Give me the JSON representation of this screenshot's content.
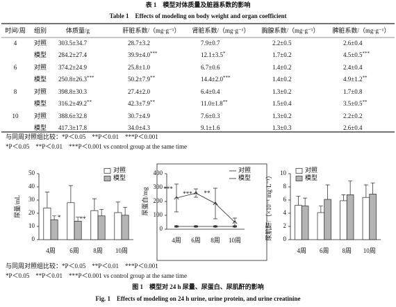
{
  "table_caption": {
    "zh": "表 1　模型对体质量及脏器系数的影响",
    "en": "Table 1　Effects of modeling on body weight and organ coefficient"
  },
  "table": {
    "headers": [
      "时间/周",
      "组别",
      "体质量/g",
      "肝脏系数/（mg·g⁻¹）",
      "肾脏系数/（mg·g⁻¹）",
      "胸腺系数/（mg·g⁻¹）",
      "脾脏系数/（mg·g⁻¹）"
    ],
    "groups": [
      {
        "week": "4",
        "rows": [
          {
            "group": "对照",
            "cells": [
              "303.5±34.7",
              "28.7±3.2",
              "7.9±0.7",
              "2.2±0.5",
              "2.6±0.4"
            ]
          },
          {
            "group": "模型",
            "cells": [
              "284.2±27.4",
              {
                "value": "39.9±4.0",
                "mark": "***"
              },
              {
                "value": "12.1±3.5",
                "mark": "*"
              },
              "1.7±0.2",
              {
                "value": "4.5±0.5",
                "mark": "***"
              }
            ]
          }
        ]
      },
      {
        "week": "6",
        "rows": [
          {
            "group": "对照",
            "cells": [
              "374.2±24.9",
              "25.8±1.0",
              "6.7±0.6",
              "1.4±0.2",
              "2.4±0.4"
            ]
          },
          {
            "group": "模型",
            "cells": [
              {
                "value": "250.8±26.3",
                "mark": "***"
              },
              {
                "value": "50.2±7.9",
                "mark": "**"
              },
              {
                "value": "14.4±2.0",
                "mark": "***"
              },
              "1.4±0.2",
              {
                "value": "4.9±1.2",
                "mark": "**"
              }
            ]
          }
        ]
      },
      {
        "week": "8",
        "rows": [
          {
            "group": "对照",
            "cells": [
              "398.8±30.3",
              "27.4±2.0",
              "6.4±0.4",
              "1.3±0.2",
              "1.7±0.8"
            ]
          },
          {
            "group": "模型",
            "cells": [
              {
                "value": "316.2±49.2",
                "mark": "**"
              },
              {
                "value": "42.3±7.9",
                "mark": "**"
              },
              {
                "value": "11.0±1.8",
                "mark": "**"
              },
              "1.5±0.4",
              {
                "value": "3.5±0.5",
                "mark": "**"
              }
            ]
          }
        ]
      },
      {
        "week": "10",
        "rows": [
          {
            "group": "对照",
            "cells": [
              "388.6±32.8",
              "30.7±4.9",
              "7.6±0.3",
              "1.3±0.2",
              "2.2±0.2"
            ]
          },
          {
            "group": "模型",
            "cells": [
              "417.3±17.8",
              "34.0±4.3",
              "9.1±1.6",
              "1.3±0.3",
              "2.6±0.4"
            ]
          }
        ]
      }
    ]
  },
  "table_notes": [
    "与同周对照组比较：*P＜0.05　**P＜0.01　***P＜0.001",
    "*P＜0.05　**P＜0.01　***P＜0.001 vs control group at the same time"
  ],
  "chart_data": [
    {
      "type": "bar",
      "ylabel": "尿量/mL",
      "categories": [
        "4周",
        "6周",
        "8周",
        "10周"
      ],
      "series": [
        {
          "name": "对照",
          "color": "#ffffff",
          "values": [
            24,
            28,
            22,
            20.5
          ],
          "errors": [
            12,
            13,
            9,
            8
          ]
        },
        {
          "name": "模型",
          "color": "#b4b4b4",
          "values": [
            15,
            14,
            18,
            18.5
          ],
          "errors": [
            3,
            3,
            5,
            6
          ],
          "significance": [
            "*",
            "**",
            null,
            null
          ]
        }
      ],
      "ylim": [
        0,
        50
      ],
      "yticks": [
        0,
        10,
        20,
        30,
        40,
        50
      ],
      "legend": "upper right"
    },
    {
      "type": "line",
      "ylabel": "尿蛋白/mg",
      "categories": [
        "4周",
        "6周",
        "8周",
        "10周"
      ],
      "series": [
        {
          "name": "对照",
          "color": "#222222",
          "values": [
            20,
            20,
            20,
            20
          ],
          "errors": [
            5,
            5,
            5,
            5
          ]
        },
        {
          "name": "模型",
          "color": "#222222",
          "values": [
            225,
            260,
            185,
            50
          ],
          "errors": [
            100,
            30,
            110,
            30
          ],
          "significance": [
            "***",
            "***",
            "**",
            null
          ]
        }
      ],
      "ylim": [
        0,
        400
      ],
      "yticks": [
        0,
        100,
        200,
        300,
        400
      ],
      "legend": "upper right",
      "frame": true
    },
    {
      "type": "bar",
      "ylabel": "尿肌酐/（×10⁻¹ mg·L⁻¹）",
      "categories": [
        "4周",
        "6周",
        "8周",
        "10周"
      ],
      "series": [
        {
          "name": "对照",
          "color": "#ffffff",
          "values": [
            5.2,
            4.1,
            5.9,
            6.4
          ],
          "errors": [
            1.4,
            1.0,
            0.9,
            1.9
          ]
        },
        {
          "name": "模型",
          "color": "#b4b4b4",
          "values": [
            5.1,
            6.1,
            6.8,
            6.9
          ],
          "errors": [
            1.2,
            2.2,
            2.1,
            1.7
          ]
        }
      ],
      "ylim": [
        0,
        10
      ],
      "yticks": [
        0,
        2,
        4,
        6,
        8,
        10
      ],
      "legend": "upper left"
    }
  ],
  "figure_notes": [
    "与同周对照组比较：*P＜0.05　**P＜0.01　***P＜0.001",
    "*P＜0.05　**P＜0.01　***P＜0.001 vs control group at the same time"
  ],
  "figure_caption": {
    "zh": "图 1　模型对 24 h 尿量、尿蛋白、尿肌酐的影响",
    "en": "Fig. 1　Effects of modeling on 24 h urine, urine protein, and urine creatinine"
  }
}
